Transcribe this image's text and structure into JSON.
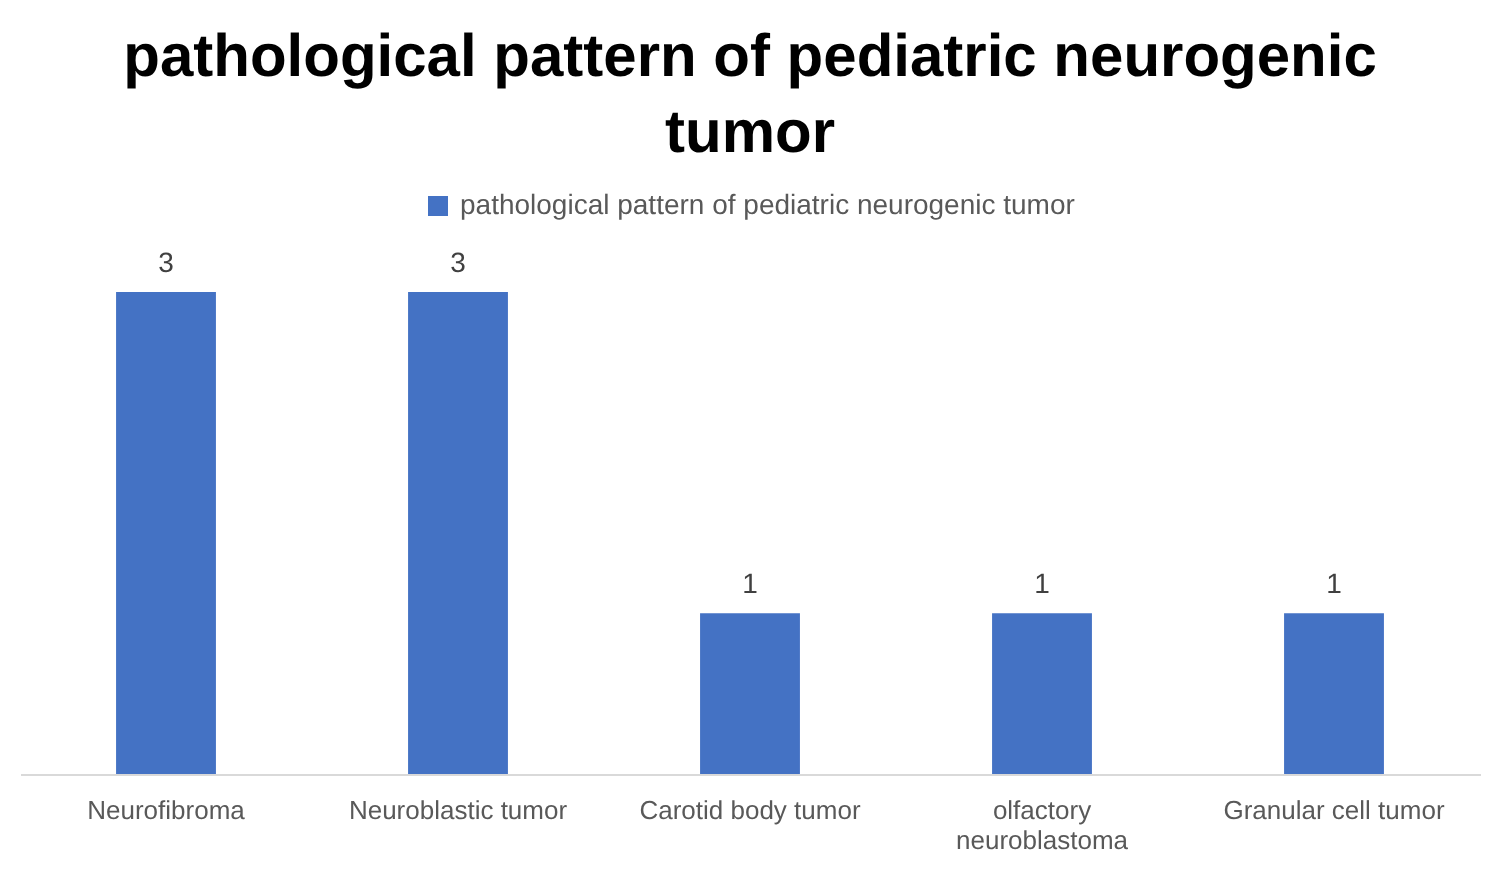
{
  "chart_data": {
    "type": "bar",
    "title": "pathological pattern of pediatric neurogenic tumor",
    "categories": [
      "Neurofibroma",
      "Neuroblastic tumor",
      "Carotid body tumor",
      "olfactory neuroblastoma",
      "Granular cell tumor"
    ],
    "series": [
      {
        "name": "pathological pattern of pediatric neurogenic tumor",
        "color": "#4472c4",
        "values": [
          3,
          3,
          1,
          1,
          1
        ]
      }
    ],
    "data_labels": true,
    "legend": "top"
  }
}
